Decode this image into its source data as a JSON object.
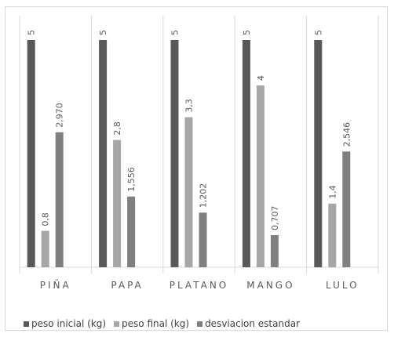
{
  "chart_data": {
    "type": "bar",
    "categories": [
      "PIÑA",
      "PAPA",
      "PLATANO",
      "MANGO",
      "LULO"
    ],
    "series": [
      {
        "name": "peso inicial (kg)",
        "color": "#595959",
        "values": [
          5,
          5,
          5,
          5,
          5
        ],
        "labels": [
          "5",
          "5",
          "5",
          "5",
          "5"
        ]
      },
      {
        "name": "peso final (kg)",
        "color": "#a6a6a6",
        "values": [
          0.8,
          2.8,
          3.3,
          4,
          1.4
        ],
        "labels": [
          "0,8",
          "2,8",
          "3,3",
          "4",
          "1,4"
        ]
      },
      {
        "name": "desviacion estandar",
        "color": "#7f7f7f",
        "values": [
          2.97,
          1.556,
          1.202,
          0.707,
          2.546
        ],
        "labels": [
          "2,970",
          "1,556",
          "1,202",
          "0,707",
          "2,546"
        ]
      }
    ],
    "ylim": [
      0,
      5.5
    ],
    "grid": false,
    "category_separators": true,
    "legend": "bottom"
  }
}
